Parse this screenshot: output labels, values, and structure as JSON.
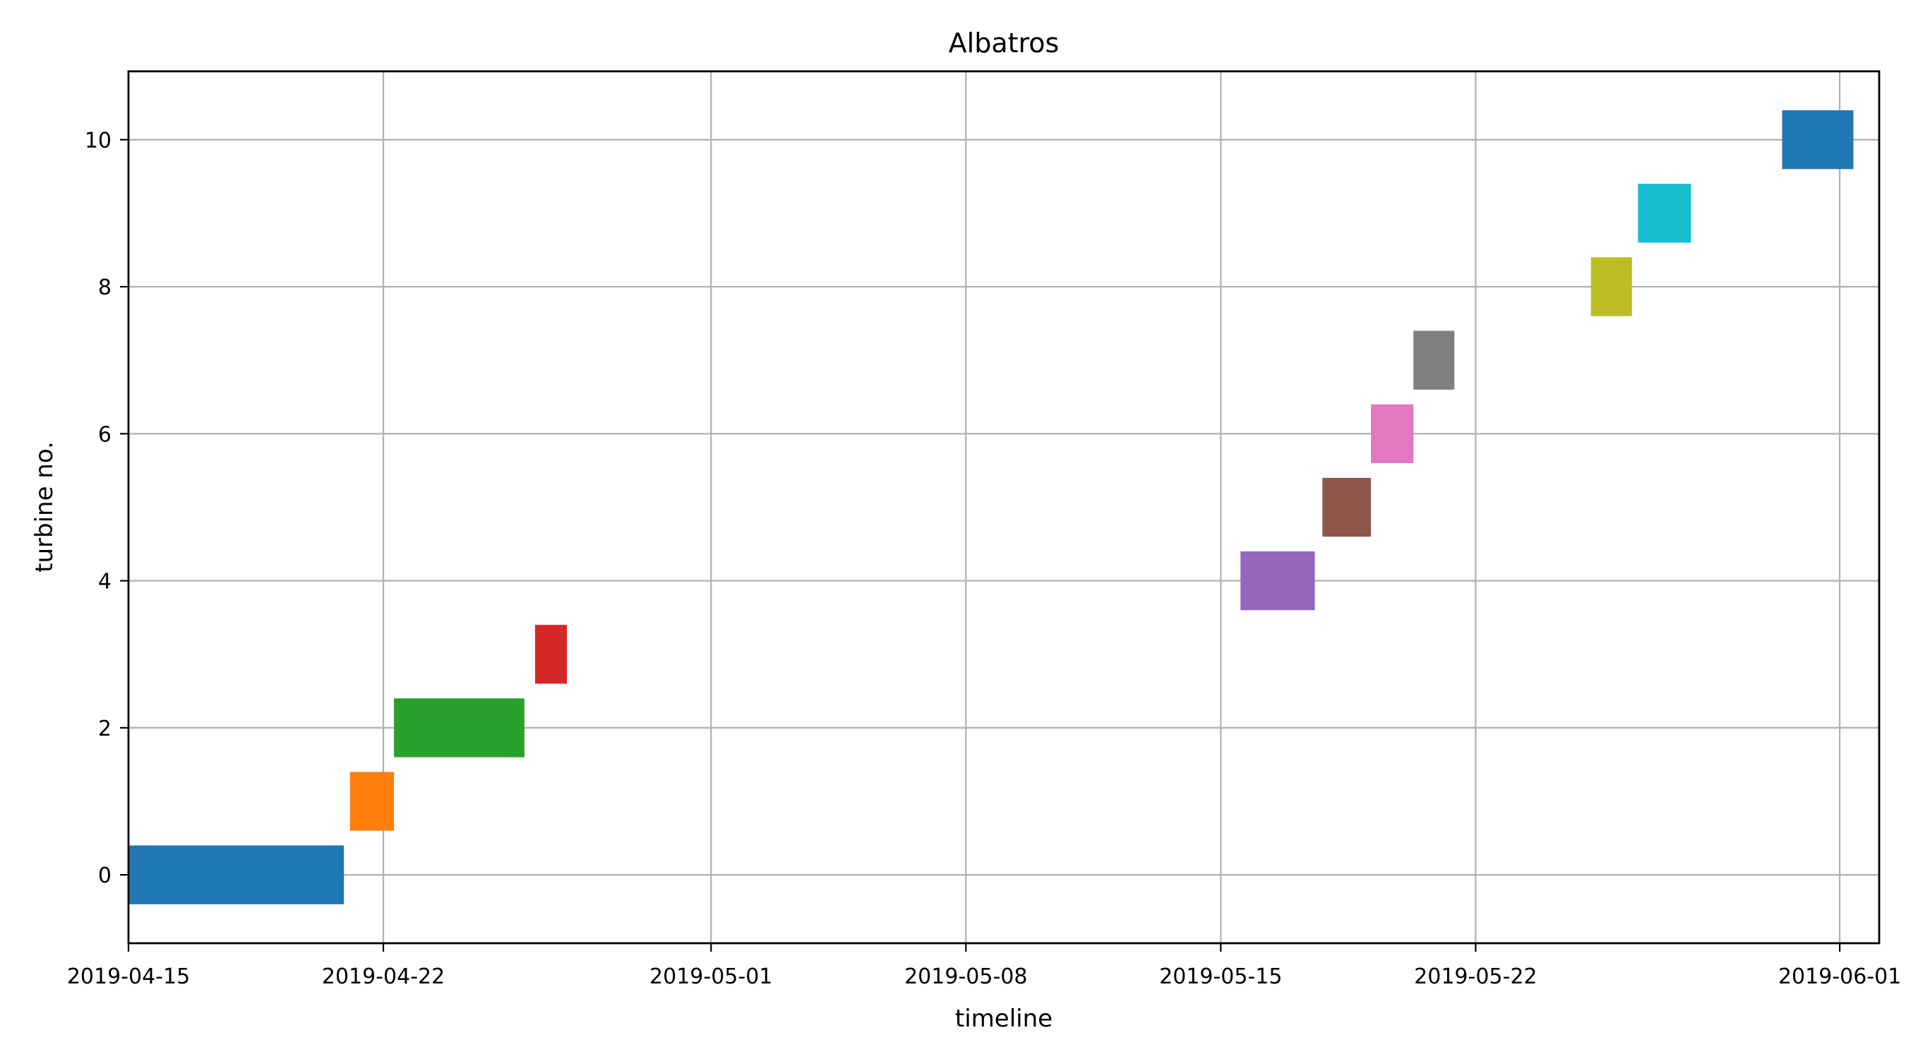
{
  "chart_data": {
    "type": "gantt",
    "title": "Albatros",
    "xlabel": "timeline",
    "ylabel": "turbine no.",
    "x_ticks": [
      "2019-04-15",
      "2019-04-22",
      "2019-05-01",
      "2019-05-08",
      "2019-05-15",
      "2019-05-22",
      "2019-06-01"
    ],
    "y_ticks": [
      "0",
      "2",
      "4",
      "6",
      "8",
      "10"
    ],
    "xlim": [
      "2019-04-15",
      "2019-06-02T02:00"
    ],
    "ylim": [
      -0.93,
      10.93
    ],
    "grid": true,
    "bar_half_height": 0.4,
    "bars": [
      {
        "turbine": 0,
        "start": "2019-04-15T00:00",
        "end": "2019-04-20T22:00",
        "color": "#1f77b4"
      },
      {
        "turbine": 1,
        "start": "2019-04-21T02:00",
        "end": "2019-04-22T07:00",
        "color": "#ff7f0e"
      },
      {
        "turbine": 2,
        "start": "2019-04-22T07:00",
        "end": "2019-04-25T21:00",
        "color": "#2ca02c"
      },
      {
        "turbine": 3,
        "start": "2019-04-26T04:00",
        "end": "2019-04-27T01:00",
        "color": "#d62728"
      },
      {
        "turbine": 4,
        "start": "2019-05-15T13:00",
        "end": "2019-05-17T14:00",
        "color": "#9467bd"
      },
      {
        "turbine": 5,
        "start": "2019-05-17T19:00",
        "end": "2019-05-19T03:00",
        "color": "#8c564b"
      },
      {
        "turbine": 6,
        "start": "2019-05-19T03:00",
        "end": "2019-05-20T07:00",
        "color": "#e377c2"
      },
      {
        "turbine": 7,
        "start": "2019-05-20T07:00",
        "end": "2019-05-21T10:00",
        "color": "#7f7f7f"
      },
      {
        "turbine": 8,
        "start": "2019-05-25T04:00",
        "end": "2019-05-26T07:00",
        "color": "#bcbd22"
      },
      {
        "turbine": 9,
        "start": "2019-05-26T11:00",
        "end": "2019-05-27T22:00",
        "color": "#17becf"
      },
      {
        "turbine": 10,
        "start": "2019-05-30T10:00",
        "end": "2019-06-01T09:00",
        "color": "#1f77b4"
      }
    ]
  }
}
